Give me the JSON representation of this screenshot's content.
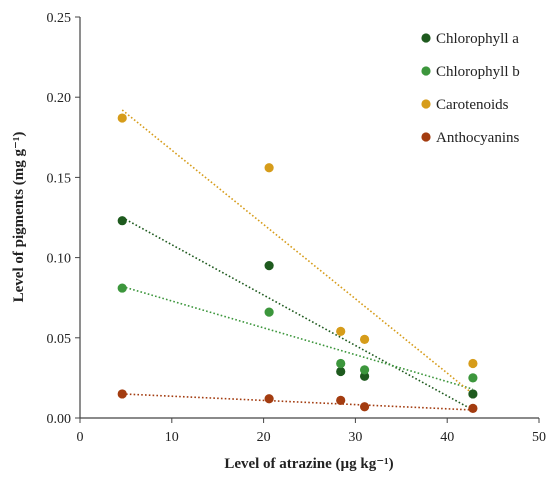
{
  "chart_data": {
    "type": "scatter",
    "xlabel": "Level of atrazine (µg kg⁻¹)",
    "ylabel": "Level of pigments (mg g⁻¹)",
    "xlim": [
      0,
      50
    ],
    "ylim": [
      0,
      0.25
    ],
    "xticks": [
      0,
      10,
      20,
      30,
      40,
      50
    ],
    "yticks": [
      0.0,
      0.05,
      0.1,
      0.15,
      0.2,
      0.25
    ],
    "xtick_labels": [
      "0",
      "10",
      "20",
      "30",
      "40",
      "50"
    ],
    "ytick_labels": [
      "0.00",
      "0.05",
      "0.10",
      "0.15",
      "0.20",
      "0.25"
    ],
    "grid": false,
    "legend_position": "top-right",
    "trendlines": "linear, dotted",
    "series": [
      {
        "name": "Chlorophyll a",
        "color": "#1e5a1e",
        "x": [
          4.6,
          20.6,
          28.4,
          31.0,
          42.8
        ],
        "y": [
          0.123,
          0.095,
          0.029,
          0.026,
          0.015
        ],
        "trend": [
          [
            4.6,
            0.125
          ],
          [
            42.8,
            0.005
          ]
        ]
      },
      {
        "name": "Chlorophyll b",
        "color": "#3c963c",
        "x": [
          4.6,
          20.6,
          28.4,
          31.0,
          42.8
        ],
        "y": [
          0.081,
          0.066,
          0.034,
          0.03,
          0.025
        ],
        "trend": [
          [
            4.6,
            0.082
          ],
          [
            42.8,
            0.018
          ]
        ]
      },
      {
        "name": "Carotenoids",
        "color": "#d69c1a",
        "x": [
          4.6,
          20.6,
          28.4,
          31.0,
          42.8
        ],
        "y": [
          0.187,
          0.156,
          0.054,
          0.049,
          0.034
        ],
        "trend": [
          [
            4.6,
            0.192
          ],
          [
            42.8,
            0.015
          ]
        ]
      },
      {
        "name": "Anthocyanins",
        "color": "#a33c10",
        "x": [
          4.6,
          20.6,
          28.4,
          31.0,
          42.8
        ],
        "y": [
          0.015,
          0.012,
          0.011,
          0.007,
          0.006
        ],
        "trend": [
          [
            4.6,
            0.015
          ],
          [
            42.8,
            0.005
          ]
        ]
      }
    ]
  }
}
